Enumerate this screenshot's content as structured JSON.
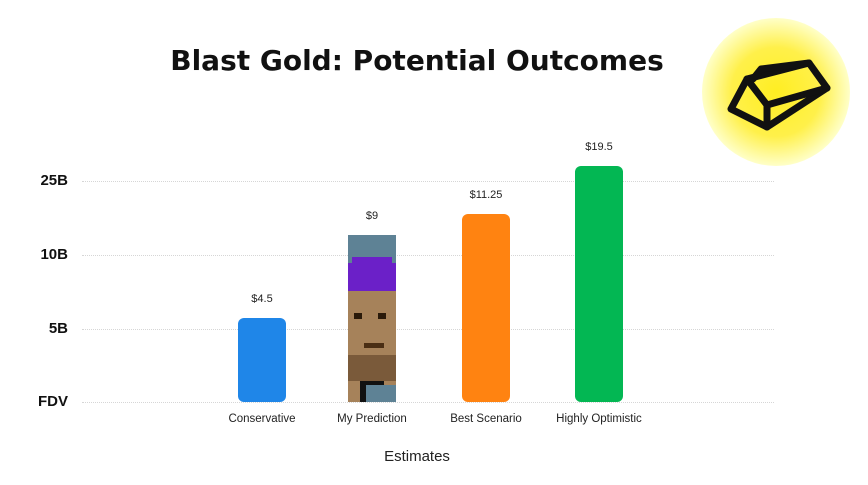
{
  "chart_data": {
    "type": "bar",
    "title": "Blast Gold: Potential Outcomes",
    "xlabel": "Estimates",
    "ylabel": "",
    "categories": [
      "Conservative",
      "My Prediction",
      "Best Scenario",
      "Highly Optimistic"
    ],
    "values": [
      4.5,
      9,
      11.25,
      19.5
    ],
    "data_labels": [
      "$4.5",
      "$9",
      "$11.25",
      "$19.5"
    ],
    "yticks": [
      {
        "label": "FDV",
        "value": 0
      },
      {
        "label": "5B",
        "value": 5
      },
      {
        "label": "10B",
        "value": 10
      },
      {
        "label": "25B",
        "value": 25
      }
    ],
    "bar_colors": [
      "#1f86e8",
      "#5e8295",
      "#ff8311",
      "#03b753"
    ],
    "grid": true,
    "legend": "none"
  },
  "logo": {
    "name": "gold-bar-icon",
    "colors": [
      "#ffe600",
      "#ffffcc"
    ]
  }
}
